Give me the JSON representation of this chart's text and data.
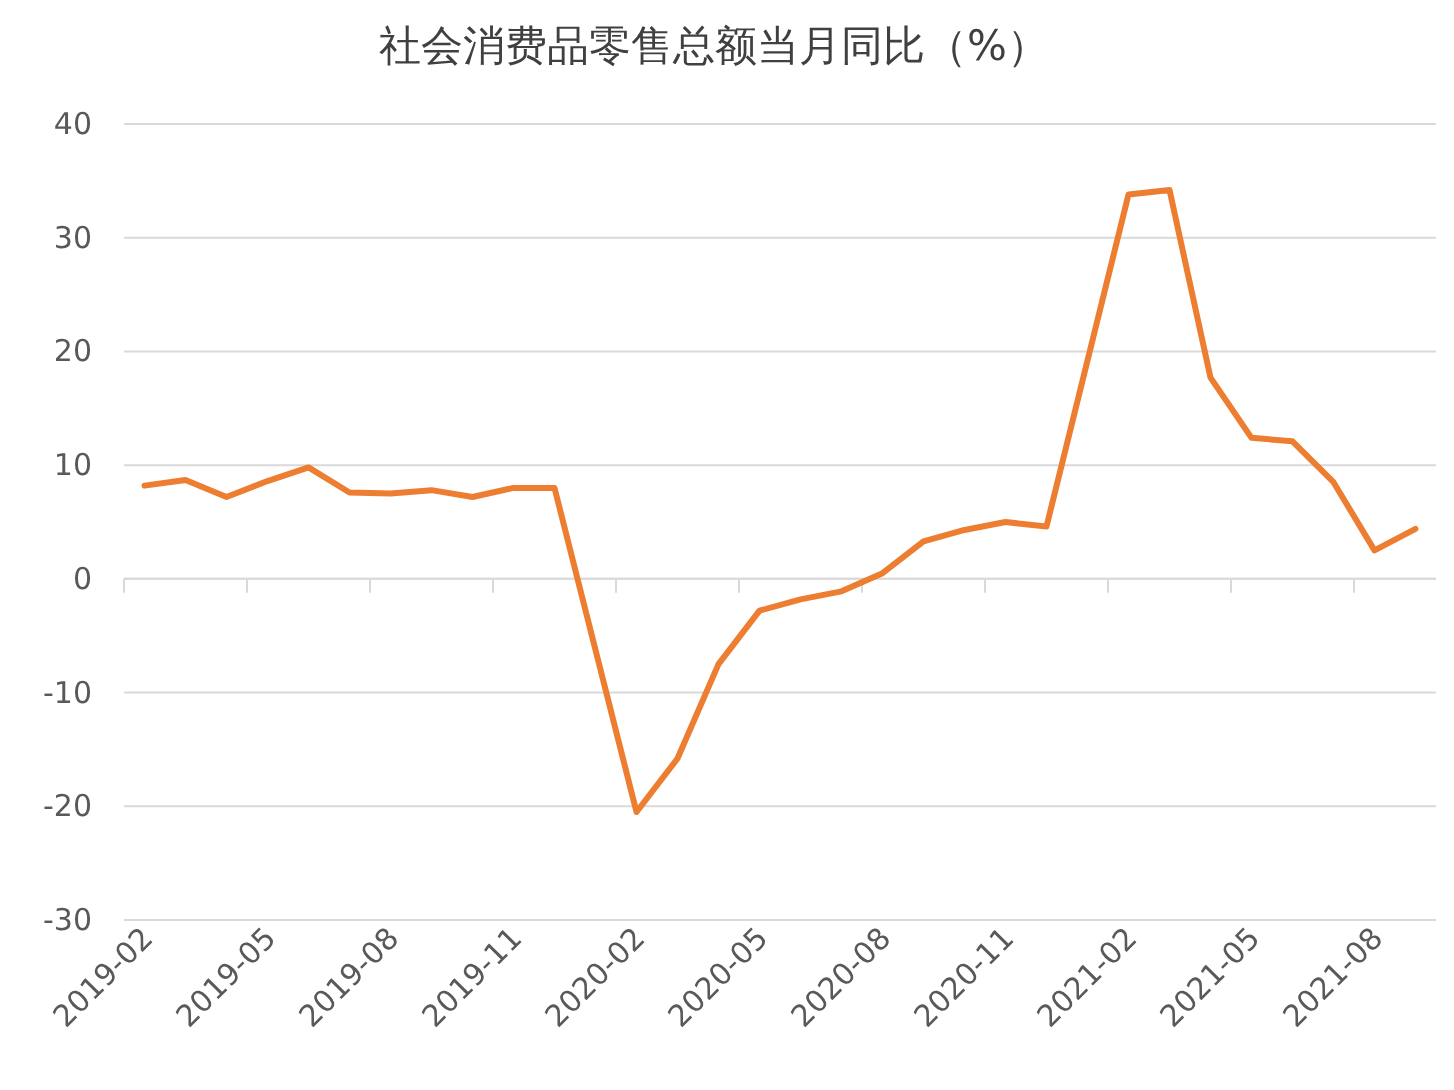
{
  "chart_data": {
    "type": "line",
    "title": "社会消费品零售总额当月同比（%）",
    "x": [
      "2019-02",
      "2019-03",
      "2019-04",
      "2019-05",
      "2019-06",
      "2019-07",
      "2019-08",
      "2019-09",
      "2019-10",
      "2019-11",
      "2019-12",
      "2020-02",
      "2020-03",
      "2020-04",
      "2020-05",
      "2020-06",
      "2020-07",
      "2020-08",
      "2020-09",
      "2020-10",
      "2020-11",
      "2020-12",
      "2021-02",
      "2021-03",
      "2021-04",
      "2021-05",
      "2021-06",
      "2021-07",
      "2021-08",
      "2021-09"
    ],
    "series": [
      {
        "color": "#ed7d31",
        "values": [
          8.2,
          8.7,
          7.2,
          8.6,
          9.8,
          7.6,
          7.5,
          7.8,
          7.2,
          8.0,
          8.0,
          -20.5,
          -15.8,
          -7.5,
          -2.8,
          -1.8,
          -1.1,
          0.5,
          3.3,
          4.3,
          5.0,
          4.6,
          33.8,
          34.2,
          17.7,
          12.4,
          12.1,
          8.5,
          2.5,
          4.4
        ]
      }
    ],
    "xlim": [
      "2019-01-16",
      "2021-09-16"
    ],
    "xticks": [
      "2019-02",
      "2019-05",
      "2019-08",
      "2019-11",
      "2020-02",
      "2020-05",
      "2020-08",
      "2020-11",
      "2021-02",
      "2021-05",
      "2021-08",
      {
        "value": "2019-01-16",
        "label": null
      },
      {
        "value": "2019-04-16",
        "label": null
      },
      {
        "value": "2019-07-16",
        "label": null
      },
      {
        "value": "2019-10-16",
        "label": null
      },
      {
        "value": "2020-01-16",
        "label": null
      },
      {
        "value": "2020-04-16",
        "label": null
      },
      {
        "value": "2020-07-16",
        "label": null
      },
      {
        "value": "2020-10-16",
        "label": null
      },
      {
        "value": "2021-01-16",
        "label": null
      },
      {
        "value": "2021-04-16",
        "label": null
      },
      {
        "value": "2021-07-16",
        "label": null
      }
    ],
    "ylim": [
      -30,
      40
    ],
    "yticks": [
      -30,
      -20,
      -10,
      0,
      10,
      20,
      30,
      40
    ],
    "grid": "y",
    "line_style": "solid"
  }
}
